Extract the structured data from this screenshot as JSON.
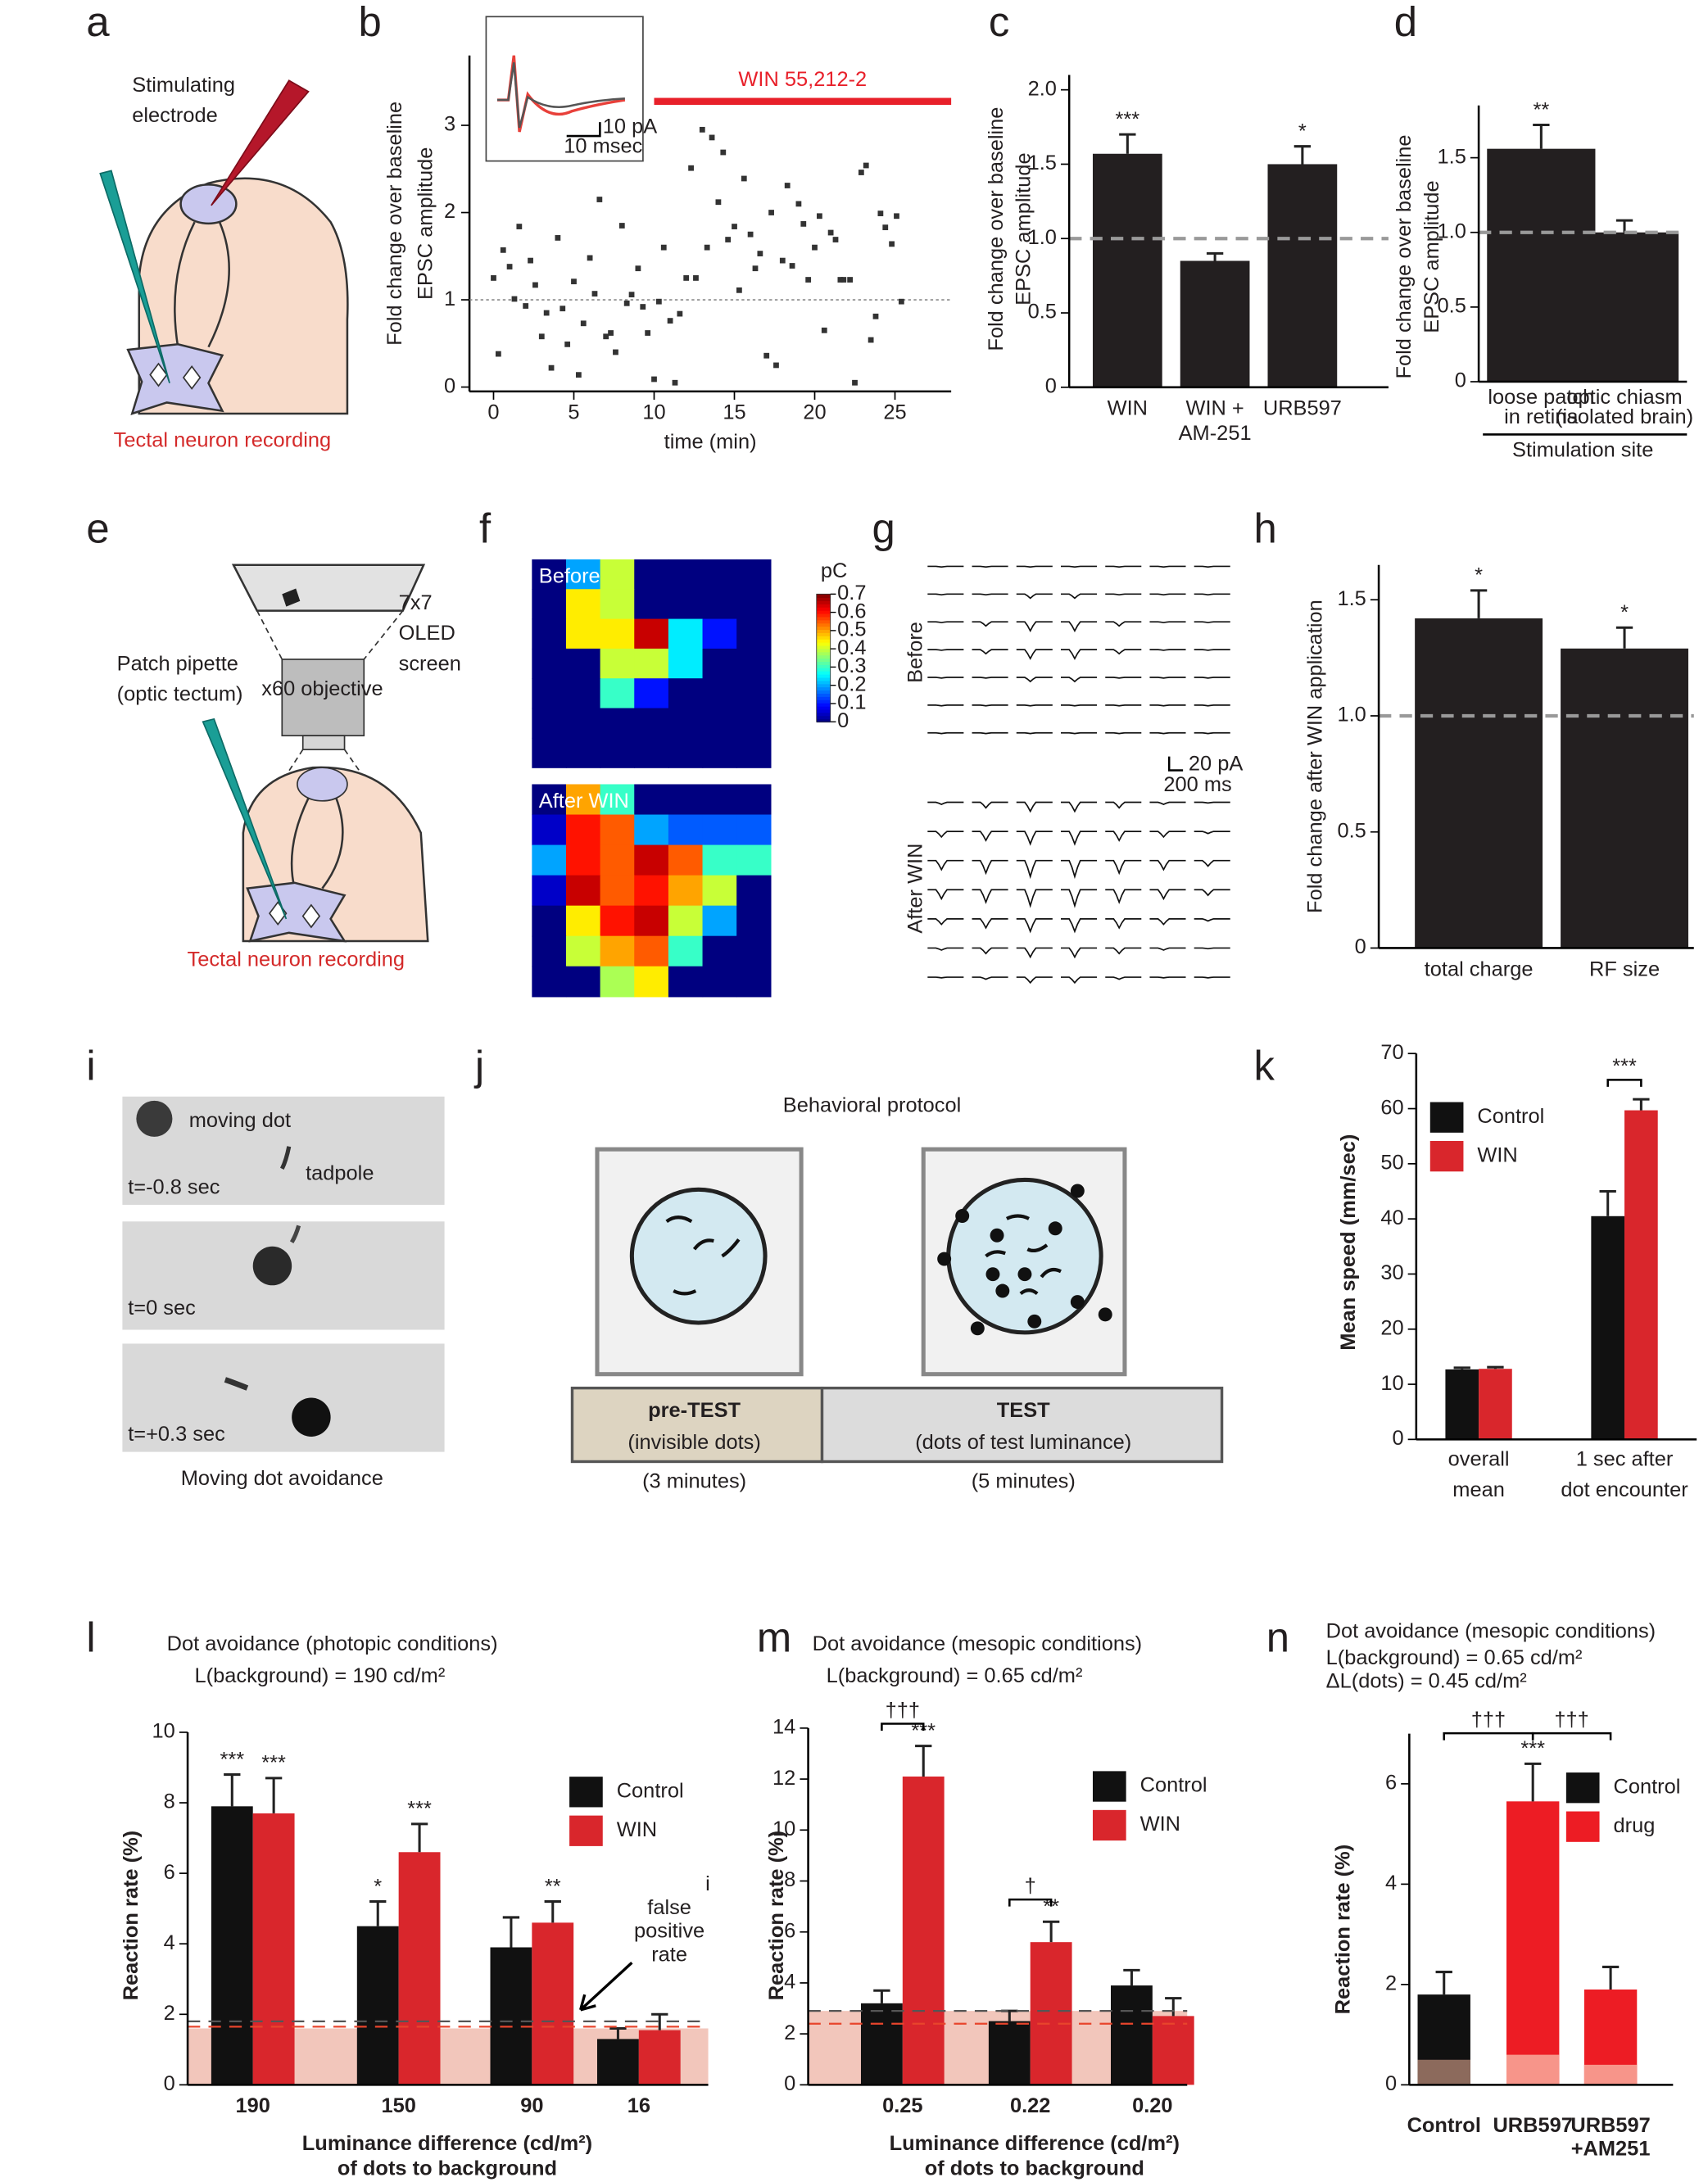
{
  "figure": {
    "panel_labels": [
      "a",
      "b",
      "c",
      "d",
      "e",
      "f",
      "g",
      "h",
      "i",
      "j",
      "k",
      "l",
      "m",
      "n"
    ],
    "a": {
      "electrode": [
        "Stimulating",
        "electrode"
      ],
      "recording": "Tectal neuron recording"
    },
    "b": {
      "inset_scale_y": "10 pA",
      "inset_scale_x": "10 msec"
    },
    "e": {
      "screen": [
        "7x7",
        "OLED",
        "screen"
      ],
      "pipette": [
        "Patch pipette",
        "(optic tectum)"
      ],
      "objective": "x60 objective",
      "recording": "Tectal neuron recording"
    },
    "g": {
      "before": "Before",
      "after": "After WIN",
      "scale_y": "20 pA",
      "scale_x": "200 ms"
    },
    "i": {
      "dot": "moving dot",
      "tadpole": "tadpole",
      "times": [
        "t=-0.8 sec",
        "t=0 sec",
        "t=+0.3 sec"
      ],
      "caption": "Moving dot avoidance"
    },
    "j": {
      "title": "Behavioral protocol",
      "pre": [
        "pre-TEST",
        "(invisible dots)"
      ],
      "pre_duration": "(3 minutes)",
      "test": [
        "TEST",
        "(dots of test luminance)"
      ],
      "test_duration": "(5 minutes)"
    },
    "stray_text": "i"
  },
  "chart_data": [
    {
      "type": "scatter",
      "ylabel": [
        "Fold change over baseline",
        "EPSC amplitude"
      ],
      "xlabel": "time (min)",
      "x": [
        0,
        0.3,
        0.6,
        1,
        1.3,
        1.6,
        2,
        2.3,
        2.6,
        3,
        3.3,
        3.6,
        4,
        4.3,
        4.6,
        5,
        5.3,
        5.6,
        6,
        6.3,
        6.6,
        7,
        7.3,
        7.6,
        8,
        8.3,
        8.6,
        9,
        9.3,
        9.6,
        10,
        10.3,
        10.6,
        11,
        11.3,
        11.6,
        12,
        12.3,
        12.6,
        13,
        13.3,
        13.6,
        14,
        14.3,
        14.6,
        15,
        15.3,
        15.6,
        16,
        16.3,
        16.6,
        17,
        17.3,
        17.6,
        18,
        18.3,
        18.6,
        19,
        19.3,
        19.6,
        20,
        20.3,
        20.6,
        21,
        21.3,
        21.6,
        21.8,
        22.2,
        22.5,
        22.9,
        23.2,
        23.5,
        23.8,
        24.1,
        24.4,
        24.8,
        25.1,
        25.4
      ],
      "y": [
        1.25,
        0.38,
        1.57,
        1.38,
        1.01,
        1.84,
        0.93,
        1.45,
        1.17,
        0.58,
        0.85,
        0.22,
        1.71,
        0.9,
        0.49,
        1.21,
        0.14,
        0.73,
        1.48,
        1.07,
        2.15,
        0.58,
        0.62,
        0.4,
        1.85,
        0.96,
        1.06,
        1.36,
        0.92,
        0.62,
        0.09,
        0.98,
        1.6,
        0.76,
        0.05,
        0.84,
        1.25,
        2.51,
        1.25,
        2.95,
        1.6,
        2.86,
        2.12,
        2.69,
        1.69,
        1.84,
        1.11,
        2.39,
        1.75,
        1.36,
        1.53,
        0.36,
        2,
        0.25,
        1.45,
        2.31,
        1.39,
        2.1,
        1.87,
        1.23,
        1.6,
        1.96,
        0.65,
        1.77,
        1.69,
        1.23,
        1.23,
        1.23,
        0.05,
        2.46,
        2.54,
        0.54,
        0.81,
        1.99,
        1.83,
        1.64,
        1.96,
        0.98
      ],
      "color": "#333",
      "xlim": [
        -1.5,
        28.5
      ],
      "ylim": [
        -0.05,
        3.8
      ],
      "xticks": [
        0,
        5,
        10,
        15,
        20,
        25
      ],
      "yticks": [
        0,
        1,
        2,
        3
      ],
      "reference_line": 1,
      "treatment": {
        "label": "WIN 55,212-2",
        "start": 10,
        "color": "#e8202a"
      }
    },
    {
      "type": "bar",
      "ylabel": [
        "Fold change over baseline",
        "EPSC amplitude"
      ],
      "categories": [
        "WIN",
        [
          "WIN +",
          "AM-251"
        ],
        "URB597"
      ],
      "values": [
        1.57,
        0.85,
        1.5
      ],
      "errors": [
        0.13,
        0.05,
        0.12
      ],
      "stars": [
        "***",
        null,
        "*"
      ],
      "color": "#231f20",
      "ylim": [
        0,
        2.1
      ],
      "yticks": [
        0,
        0.5,
        {
          "value": 1,
          "label": "1.0"
        },
        1.5,
        {
          "value": 2,
          "label": "2.0"
        }
      ],
      "reference_lines": [
        {
          "value": 1,
          "color": "#999"
        }
      ]
    },
    {
      "type": "bar",
      "ylabel": [
        "Fold change over baseline",
        "EPSC amplitude"
      ],
      "xlabel": "Stimulation site",
      "categories": [
        [
          "loose patch",
          "in retina"
        ],
        [
          "optic chiasm",
          "(isolated brain)"
        ]
      ],
      "values": [
        1.56,
        1.0
      ],
      "errors": [
        0.16,
        0.08
      ],
      "stars": [
        "**",
        null
      ],
      "color": "#231f20",
      "ylim": [
        0,
        1.85
      ],
      "yticks": [
        0,
        0.5,
        {
          "value": 1,
          "label": "1.0"
        },
        1.5
      ],
      "reference_lines": [
        {
          "value": 1,
          "color": "#999"
        }
      ]
    },
    {
      "type": "heatmap",
      "colorbar": {
        "label": "pC",
        "lim": [
          0,
          0.7
        ],
        "ticks": [
          0,
          0.1,
          0.2,
          0.3,
          0.4,
          0.5,
          0.6,
          0.7
        ]
      },
      "series": [
        {
          "name": "Before",
          "values": [
            [
              0,
              0.2,
              0.4,
              0,
              0,
              0,
              0
            ],
            [
              0,
              0.45,
              0.4,
              0,
              0,
              0,
              0
            ],
            [
              0,
              0.45,
              0.45,
              0.65,
              0.25,
              0.1,
              0
            ],
            [
              0,
              0,
              0.4,
              0.4,
              0.25,
              0,
              0
            ],
            [
              0,
              0,
              0.3,
              0.1,
              0,
              0,
              0
            ],
            [
              0,
              0,
              0,
              0,
              0,
              0,
              0
            ],
            [
              0,
              0,
              0,
              0,
              0,
              0,
              0
            ]
          ]
        },
        {
          "name": "After WIN",
          "values": [
            [
              0,
              0.5,
              0.3,
              0,
              0,
              0,
              0
            ],
            [
              0.05,
              0.6,
              0.55,
              0.2,
              0.15,
              0.15,
              0.15
            ],
            [
              0.2,
              0.6,
              0.55,
              0.65,
              0.55,
              0.3,
              0.3
            ],
            [
              0.05,
              0.65,
              0.55,
              0.6,
              0.5,
              0.4,
              0
            ],
            [
              0,
              0.45,
              0.6,
              0.65,
              0.4,
              0.2,
              0
            ],
            [
              0,
              0.4,
              0.5,
              0.55,
              0.3,
              0,
              0
            ],
            [
              0,
              0,
              0.38,
              0.45,
              0,
              0,
              0
            ]
          ]
        }
      ]
    },
    {
      "type": "bar",
      "ylabel": [
        "Fold change after WIN application"
      ],
      "categories": [
        "total charge",
        "RF size"
      ],
      "values": [
        1.42,
        1.29
      ],
      "errors": [
        0.12,
        0.09
      ],
      "stars": [
        "*",
        "*"
      ],
      "color": "#231f20",
      "ylim": [
        0,
        1.65
      ],
      "yticks": [
        0,
        0.5,
        {
          "value": 1,
          "label": "1.0"
        },
        1.5
      ],
      "reference_lines": [
        {
          "value": 1,
          "color": "#999"
        }
      ]
    },
    {
      "type": "bar",
      "ylabel": [
        "Mean speed (mm/sec)"
      ],
      "categories": [
        [
          "overall",
          "mean"
        ],
        [
          "1 sec after",
          "dot encounter"
        ]
      ],
      "series": [
        {
          "name": "Control",
          "color": "#111",
          "values": [
            12.7,
            40.5
          ],
          "errors": [
            0.3,
            4.5
          ]
        },
        {
          "name": "WIN",
          "color": "#d9262c",
          "values": [
            12.8,
            59.7
          ],
          "errors": [
            0.3,
            2
          ]
        }
      ],
      "ylim": [
        0,
        70
      ],
      "yticks": [
        0,
        10,
        20,
        30,
        40,
        50,
        60,
        70
      ],
      "legend_position": "upper left",
      "brackets": [
        {
          "label": "***",
          "from": 1,
          "to": 1
        }
      ]
    },
    {
      "type": "bar",
      "title": "Dot avoidance (photopic conditions)",
      "subtitle": "L(background) =  190 cd/m²",
      "ylabel": [
        "Reaction rate (%)"
      ],
      "xlabel": [
        "Luminance difference (cd/m²)",
        "of dots to background"
      ],
      "categories": [
        "190",
        "150",
        "90",
        "16"
      ],
      "series": [
        {
          "name": "Control",
          "color": "#111",
          "values": [
            7.9,
            4.5,
            3.9,
            1.3
          ],
          "errors": [
            0.9,
            0.7,
            0.85,
            0.3
          ],
          "stars": [
            "***",
            "*",
            null,
            null
          ]
        },
        {
          "name": "WIN",
          "color": "#d9262c",
          "values": [
            7.7,
            6.6,
            4.6,
            1.55
          ],
          "errors": [
            1.0,
            0.8,
            0.6,
            0.45
          ],
          "stars": [
            "***",
            "***",
            "**",
            null
          ]
        }
      ],
      "ylim": [
        0,
        10
      ],
      "yticks": [
        0,
        2,
        4,
        6,
        8,
        10
      ],
      "band": 1.6,
      "band_color": "#f2c6bb",
      "reference_lines": [
        {
          "value": 1.8,
          "color": "#555"
        },
        {
          "value": 1.65,
          "color": "#e8452c"
        }
      ],
      "legend_position": "upper right",
      "annotation": [
        "false",
        "positive",
        "rate"
      ]
    },
    {
      "type": "bar",
      "title": "Dot avoidance (mesopic conditions)",
      "subtitle": "L(background) = 0.65 cd/m²",
      "ylabel": [
        "Reaction rate (%)"
      ],
      "xlabel": [
        "Luminance difference (cd/m²)",
        "of dots to background"
      ],
      "categories": [
        "0.25",
        "0.22",
        "0.20"
      ],
      "series": [
        {
          "name": "Control",
          "color": "#111",
          "values": [
            3.2,
            2.5,
            3.9
          ],
          "errors": [
            0.5,
            0.4,
            0.6
          ]
        },
        {
          "name": "WIN",
          "color": "#d9262c",
          "values": [
            12.1,
            5.6,
            2.7
          ],
          "errors": [
            1.2,
            0.8,
            0.7
          ],
          "stars": [
            "***",
            "**",
            null
          ]
        }
      ],
      "ylim": [
        0,
        14
      ],
      "yticks": [
        0,
        2,
        4,
        6,
        8,
        10,
        12,
        14
      ],
      "band": 2.9,
      "band_color": "#f2c6bb",
      "reference_lines": [
        {
          "value": 2.9,
          "color": "#555"
        },
        {
          "value": 2.4,
          "color": "#e8452c"
        }
      ],
      "legend_position": "upper right",
      "brackets": [
        {
          "label": "†††",
          "from": 0,
          "to": 0
        },
        {
          "label": "†",
          "from": 1,
          "to": 1
        }
      ]
    },
    {
      "type": "bar",
      "title": "Dot avoidance (mesopic conditions)",
      "subtitle": [
        "L(background) = 0.65 cd/m²",
        "ΔL(dots) = 0.45 cd/m²"
      ],
      "ylabel": [
        "Reaction rate (%)"
      ],
      "categories": [
        "Control",
        "URB597",
        [
          "URB597",
          "+AM251"
        ]
      ],
      "values": [
        1.8,
        5.65,
        1.9
      ],
      "errors": [
        0.45,
        0.75,
        0.45
      ],
      "colors": [
        "#111",
        "#ed1c24",
        "#ed1c24"
      ],
      "base_values": [
        0.5,
        0.6,
        0.4
      ],
      "base_colors": [
        "#8c6a5c",
        "#f7958a",
        "#f7958a"
      ],
      "stars": [
        null,
        "***",
        null
      ],
      "legend": [
        {
          "name": "Control",
          "color": "#111"
        },
        {
          "name": "drug",
          "color": "#ed1c24"
        }
      ],
      "legend_position": "upper right",
      "ylim": [
        0,
        7
      ],
      "yticks": [
        0,
        2,
        4,
        6
      ],
      "brackets": [
        {
          "label": "†††",
          "from": 0,
          "to": 1
        },
        {
          "label": "†††",
          "from": 1,
          "to": 2
        }
      ]
    }
  ]
}
